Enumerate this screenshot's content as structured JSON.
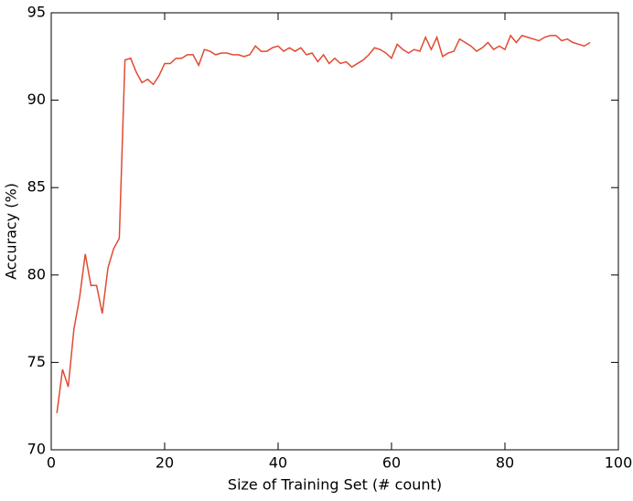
{
  "chart_data": {
    "type": "line",
    "x_label": "Size of Training Set (# count)",
    "y_label": "Accuracy (%)",
    "x": [
      1,
      2,
      3,
      4,
      5,
      6,
      7,
      8,
      9,
      10,
      11,
      12,
      13,
      14,
      15,
      16,
      17,
      18,
      19,
      20,
      21,
      22,
      23,
      24,
      25,
      26,
      27,
      28,
      29,
      30,
      31,
      32,
      33,
      34,
      35,
      36,
      37,
      38,
      39,
      40,
      41,
      42,
      43,
      44,
      45,
      46,
      47,
      48,
      49,
      50,
      51,
      52,
      53,
      54,
      55,
      56,
      57,
      58,
      59,
      60,
      61,
      62,
      63,
      64,
      65,
      66,
      67,
      68,
      69,
      70,
      71,
      72,
      73,
      74,
      75,
      76,
      77,
      78,
      79,
      80,
      81,
      82,
      83,
      84,
      85,
      86,
      87,
      88,
      89,
      90,
      91,
      92,
      93,
      94,
      95
    ],
    "series": [
      {
        "color": "#e24a33",
        "values": [
          72.1,
          74.6,
          73.6,
          76.9,
          78.7,
          81.2,
          79.4,
          79.4,
          77.8,
          80.4,
          81.5,
          82.1,
          92.3,
          92.4,
          91.6,
          91.0,
          91.2,
          90.9,
          91.4,
          92.1,
          92.1,
          92.4,
          92.4,
          92.6,
          92.6,
          92.0,
          92.9,
          92.8,
          92.6,
          92.7,
          92.7,
          92.6,
          92.6,
          92.5,
          92.6,
          93.1,
          92.8,
          92.8,
          93.0,
          93.1,
          92.8,
          93.0,
          92.8,
          93.0,
          92.6,
          92.7,
          92.2,
          92.6,
          92.1,
          92.4,
          92.1,
          92.2,
          91.9,
          92.1,
          92.3,
          92.6,
          93.0,
          92.9,
          92.7,
          92.4,
          93.2,
          92.9,
          92.7,
          92.9,
          92.8,
          93.6,
          92.9,
          93.6,
          92.5,
          92.7,
          92.8,
          93.5,
          93.3,
          93.1,
          92.8,
          93.0,
          93.3,
          92.9,
          93.1,
          92.9,
          93.7,
          93.3,
          93.7,
          93.6,
          93.5,
          93.4,
          93.6,
          93.7,
          93.7,
          93.4,
          93.5,
          93.3,
          93.2,
          93.1,
          93.3
        ]
      }
    ],
    "xlim": [
      0,
      100
    ],
    "xticks": [
      0,
      20,
      40,
      60,
      80,
      100
    ],
    "ylim": [
      70,
      95
    ],
    "yticks": [
      70,
      75,
      80,
      85,
      90,
      95
    ]
  }
}
